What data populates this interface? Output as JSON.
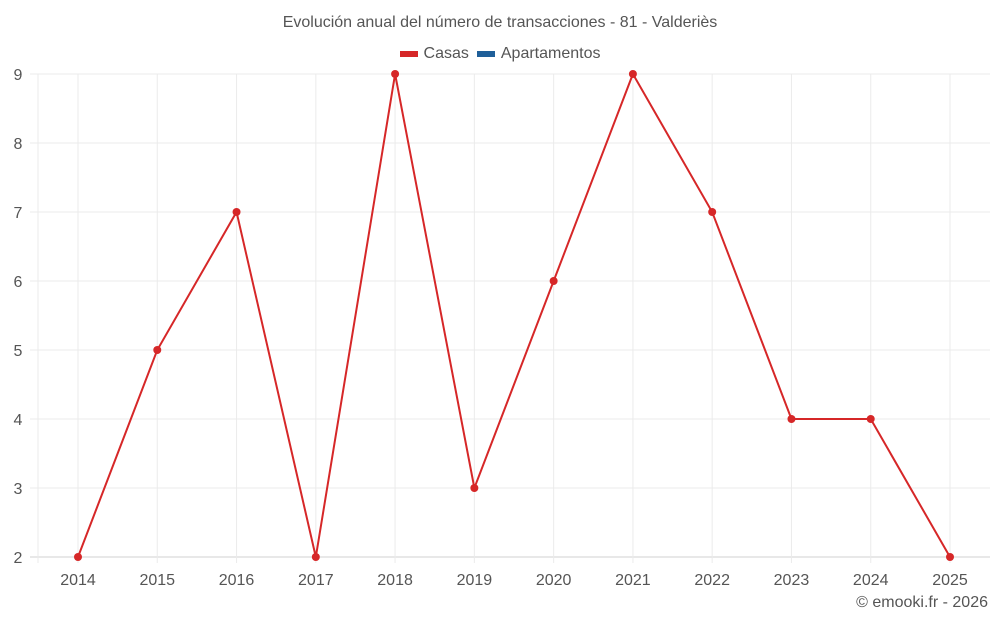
{
  "title": "Evolución anual del número de transacciones - 81 - Valderiès",
  "legend": [
    {
      "label": "Casas",
      "color": "#d62728"
    },
    {
      "label": "Apartamentos",
      "color": "#1f5f99"
    }
  ],
  "credit": "© emooki.fr - 2026",
  "chart_data": {
    "type": "line",
    "title": "Evolución anual del número de transacciones - 81 - Valderiès",
    "xlabel": "",
    "ylabel": "",
    "categories": [
      "2014",
      "2015",
      "2016",
      "2017",
      "2018",
      "2019",
      "2020",
      "2021",
      "2022",
      "2023",
      "2024",
      "2025"
    ],
    "series": [
      {
        "name": "Casas",
        "color": "#d62728",
        "values": [
          2,
          5,
          7,
          2,
          9,
          3,
          6,
          9,
          7,
          4,
          4,
          2
        ]
      },
      {
        "name": "Apartamentos",
        "color": "#1f5f99",
        "values": []
      }
    ],
    "yticks": [
      2,
      3,
      4,
      5,
      6,
      7,
      8,
      9
    ],
    "ylim": [
      2,
      9
    ],
    "grid": true,
    "legend_position": "top"
  }
}
